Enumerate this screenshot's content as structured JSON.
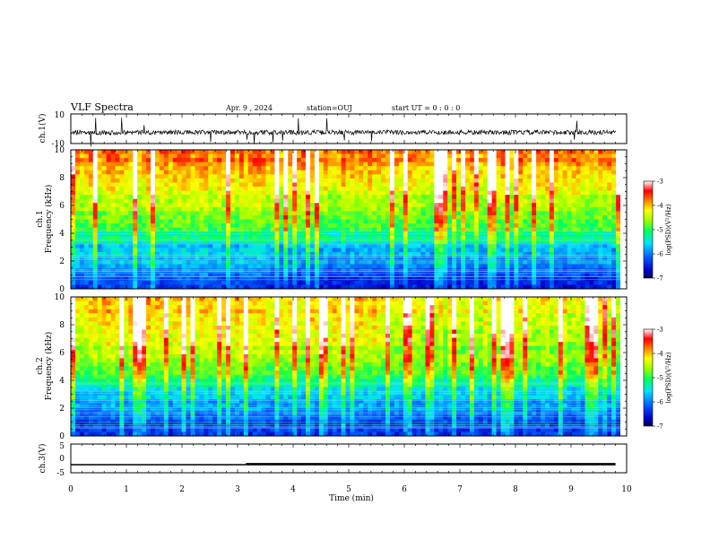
{
  "header": {
    "title": "VLF Spectra",
    "date": "Apr. 9 , 2024",
    "station": "station=OUJ",
    "start": "start  UT =  0 : 0  : 0"
  },
  "chart_data": [
    {
      "type": "line",
      "name": "ch1-waveform",
      "ylabel": "ch.1(V)",
      "xlim": [
        0,
        10
      ],
      "ylim": [
        -10,
        10
      ],
      "yticks": [
        "10",
        "-10"
      ],
      "baseline": -2.5,
      "data_end_x": 9.8
    },
    {
      "type": "heatmap",
      "name": "ch1-spectrogram",
      "ylabel_line1": "ch.1",
      "ylabel_line2": "Frequency (kHz)",
      "xlim": [
        0,
        10
      ],
      "ylim": [
        0,
        10
      ],
      "yticks": [
        "0",
        "2",
        "4",
        "6",
        "8",
        "10"
      ],
      "colorbar": {
        "label": "log(PSD)(V²/Hz)",
        "range": [
          -7,
          -3
        ],
        "ticks": [
          "-3",
          "-4",
          "-5",
          "-6",
          "-7"
        ]
      }
    },
    {
      "type": "heatmap",
      "name": "ch2-spectrogram",
      "ylabel_line1": "ch.2",
      "ylabel_line2": "Frequency (kHz)",
      "xlim": [
        0,
        10
      ],
      "ylim": [
        0,
        10
      ],
      "yticks": [
        "0",
        "2",
        "4",
        "6",
        "8",
        "10"
      ],
      "colorbar": {
        "label": "log(PSD)(V²/Hz)",
        "range": [
          -7,
          -3
        ],
        "ticks": [
          "-3",
          "-4",
          "-5",
          "-6",
          "-7"
        ]
      }
    },
    {
      "type": "line",
      "name": "ch3-voltage",
      "ylabel": "ch.3(V)",
      "xlim": [
        0,
        10
      ],
      "ylim": [
        -5,
        5
      ],
      "yticks": [
        "5",
        "0",
        "-5"
      ],
      "segments": [
        {
          "x0": 0,
          "x1": 3.15,
          "y": -2.2
        },
        {
          "x0": 3.15,
          "x1": 9.8,
          "y": -2.0
        }
      ],
      "xlabel": "Time (min)",
      "xticks": [
        "0",
        "1",
        "2",
        "3",
        "4",
        "5",
        "6",
        "7",
        "8",
        "9",
        "10"
      ]
    }
  ],
  "colors": {
    "scale": [
      "#00008b",
      "#0000ff",
      "#0080ff",
      "#00ffff",
      "#00ff80",
      "#80ff00",
      "#ffff00",
      "#ff8000",
      "#ff0000",
      "#ffffff"
    ]
  }
}
